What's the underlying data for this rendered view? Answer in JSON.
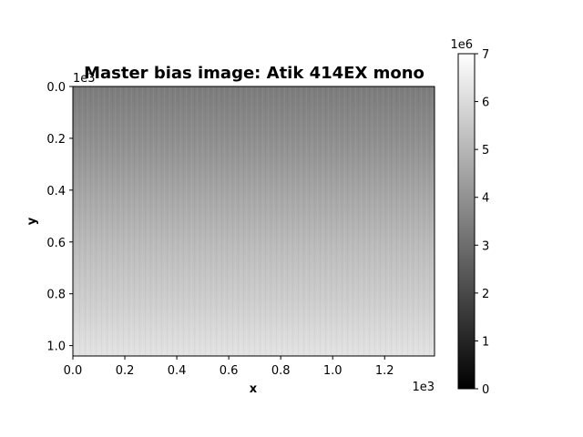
{
  "chart_data": {
    "type": "heatmap",
    "title": "Master bias image: Atik 414EX mono",
    "xlabel": "x",
    "ylabel": "y",
    "x_offset_label": "1e3",
    "y_offset_label": "1e3",
    "x_ticks": [
      "0.0",
      "0.2",
      "0.4",
      "0.6",
      "0.8",
      "1.0",
      "1.2"
    ],
    "y_ticks": [
      "0.0",
      "0.2",
      "0.4",
      "0.6",
      "0.8",
      "1.0"
    ],
    "xlim": [
      0,
      1392
    ],
    "ylim": [
      1040,
      0
    ],
    "colormap": "gray",
    "image_gradient": {
      "direction": "vertical",
      "top_value": 3.5,
      "bottom_value": 6.4,
      "colors": [
        "#7b7b7b",
        "#8f8f8f",
        "#a6a6a6",
        "#bcbcbc",
        "#cecece",
        "#e3e3e3"
      ]
    },
    "colorbar": {
      "offset_label": "1e6",
      "ticks": [
        "0",
        "1",
        "2",
        "3",
        "4",
        "5",
        "6",
        "7"
      ],
      "range": [
        0,
        7
      ],
      "colors": {
        "low": "#000000",
        "high": "#ffffff"
      }
    }
  }
}
